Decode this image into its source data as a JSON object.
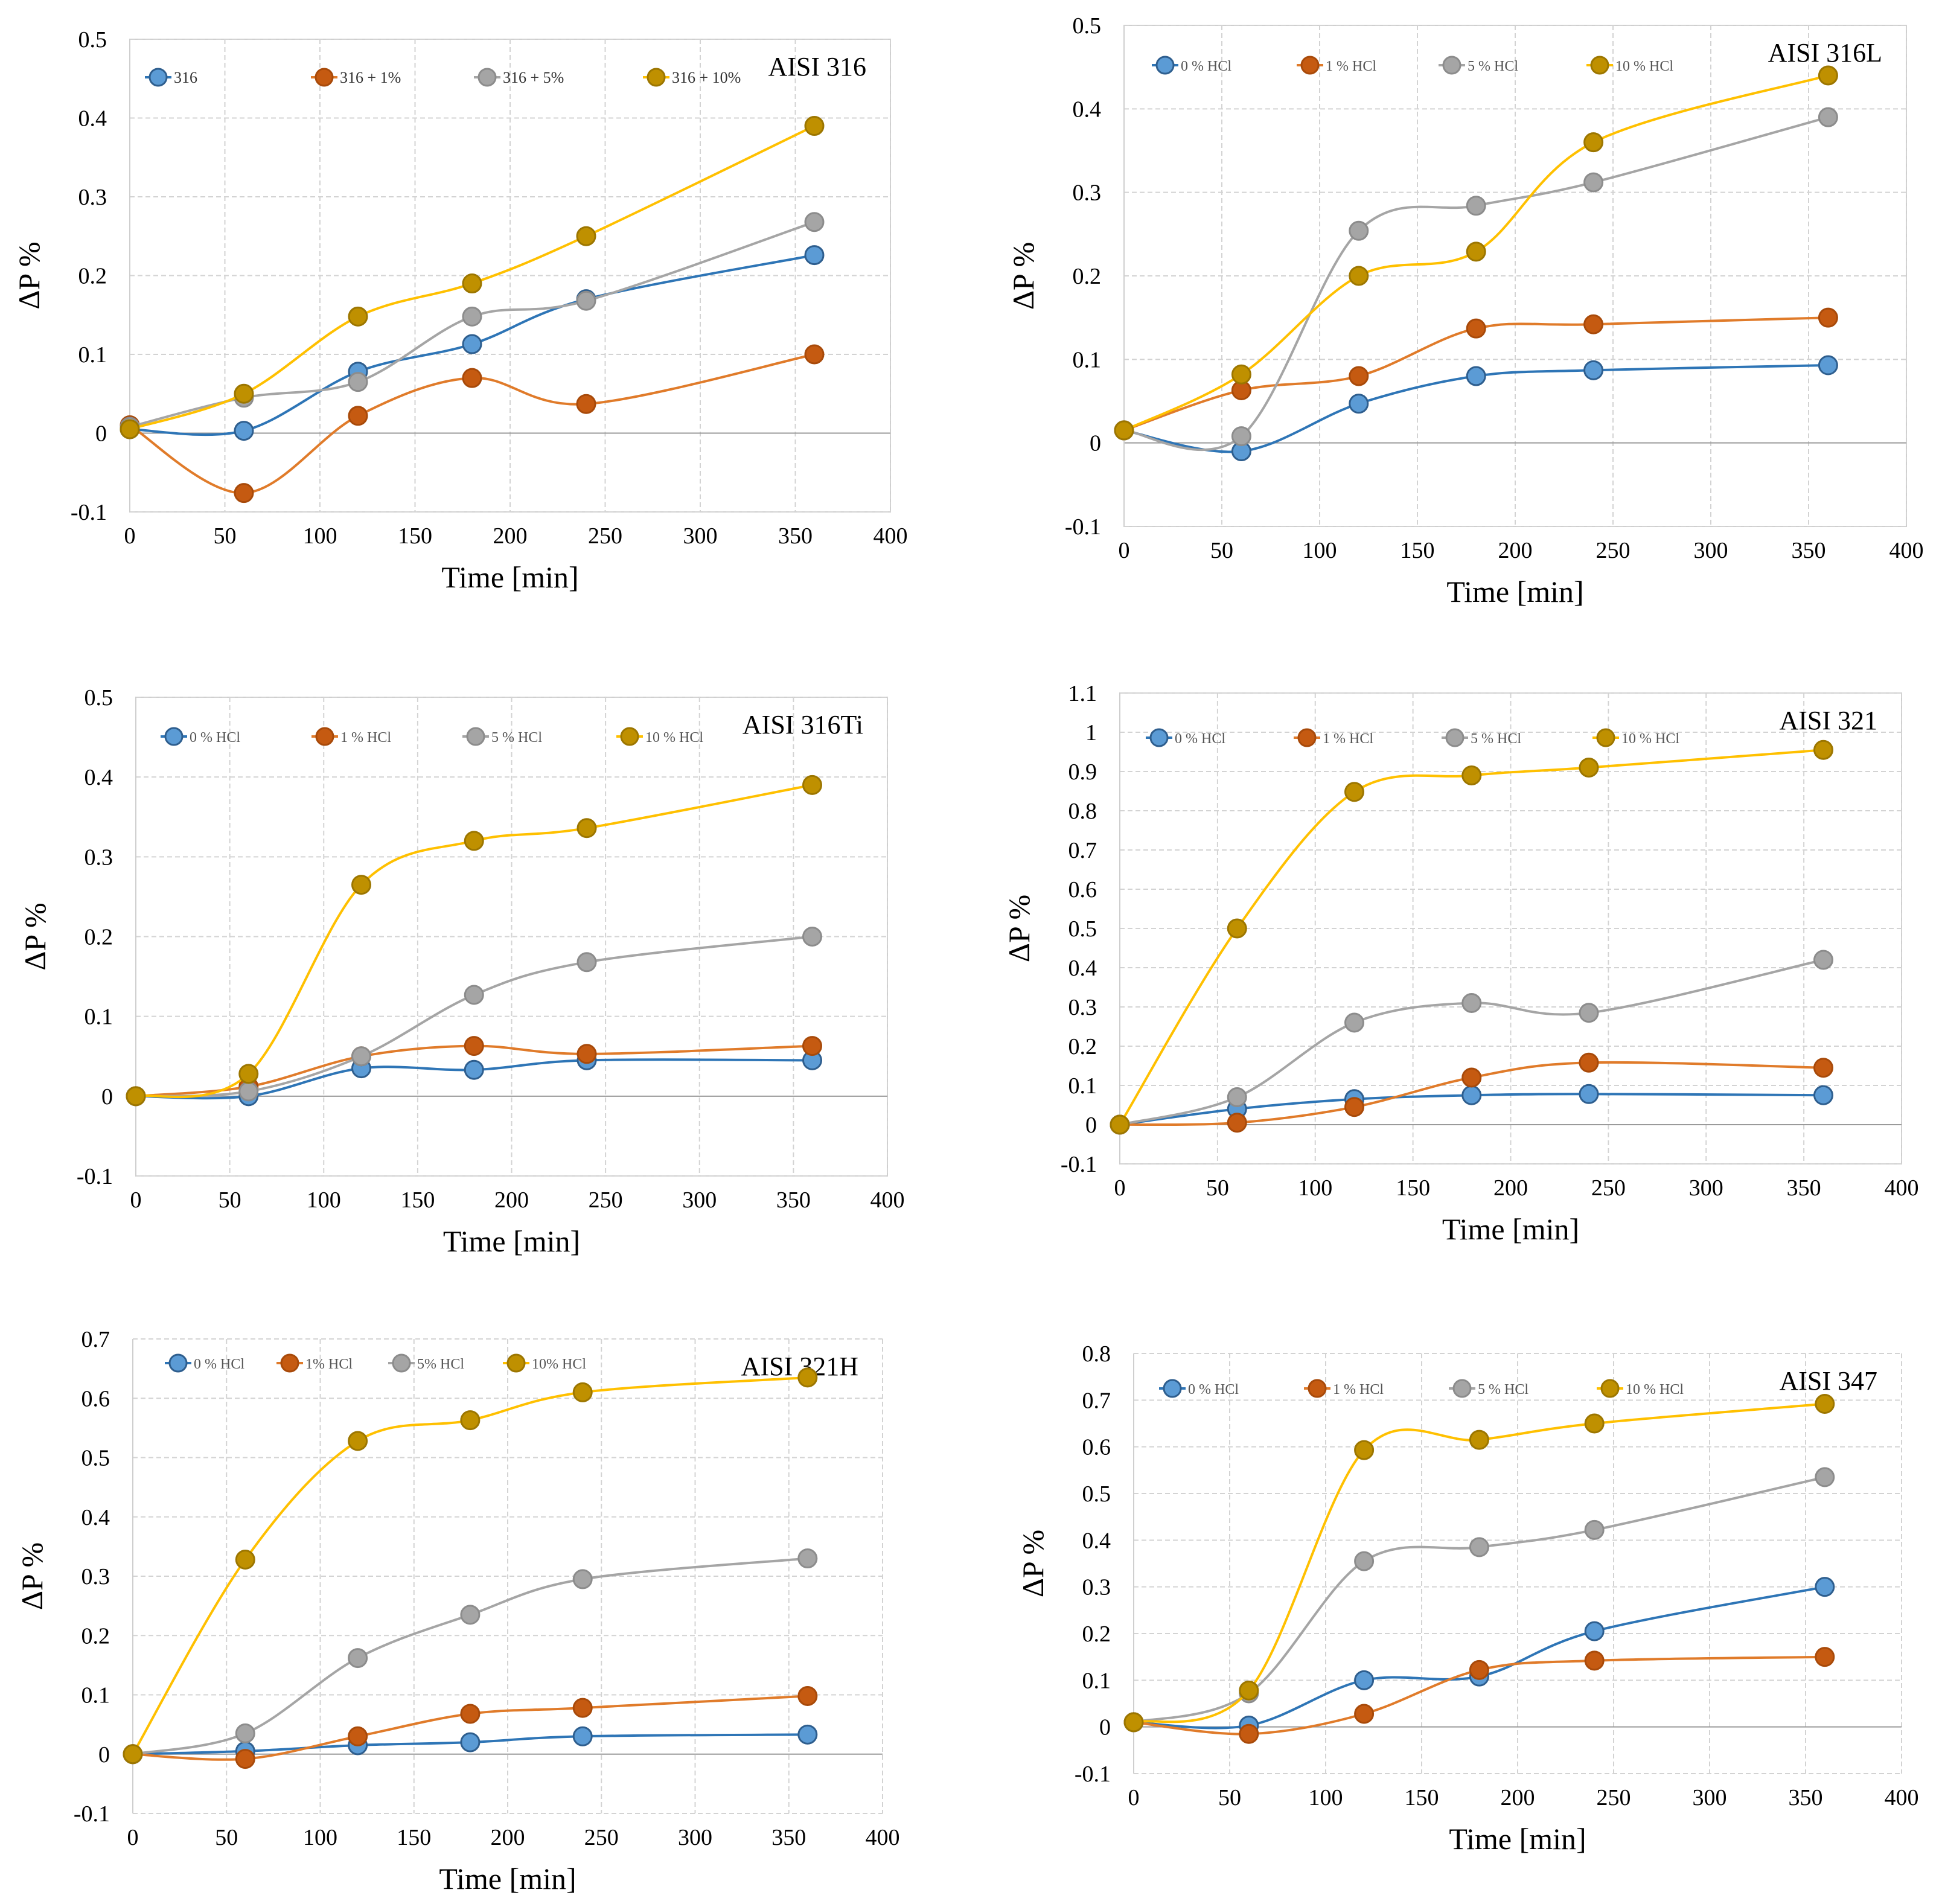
{
  "colors": {
    "blue_fill": "#5B9BD5",
    "blue_line": "#2E75B6",
    "blue_stroke": "#2E5E8E",
    "orange_fill": "#C55A11",
    "orange_line": "#E07B2A",
    "orange_stroke": "#A84A0A",
    "gray_fill": "#A5A5A5",
    "gray_line": "#A5A5A5",
    "gray_stroke": "#8C8C8C",
    "gold_fill": "#BF9000",
    "gold_line": "#FFC000",
    "gold_stroke": "#9C7600"
  },
  "chart_data": [
    {
      "type": "line",
      "title": "AISI 316",
      "xlabel": "Time [min]",
      "ylabel": "ΔP %",
      "xlim": [
        0,
        400
      ],
      "ylim": [
        -0.1,
        0.5
      ],
      "xticks": [
        0,
        50,
        100,
        150,
        200,
        250,
        300,
        350,
        400
      ],
      "yticks": [
        -0.1,
        0,
        0.1,
        0.2,
        0.3,
        0.4,
        0.5
      ],
      "x": [
        0,
        60,
        120,
        180,
        240,
        360
      ],
      "series": [
        {
          "name": "316",
          "color": "blue",
          "values": [
            0.005,
            0.003,
            0.078,
            0.113,
            0.17,
            0.226
          ]
        },
        {
          "name": "316 + 1%",
          "color": "orange",
          "values": [
            0.01,
            -0.076,
            0.022,
            0.07,
            0.037,
            0.1
          ]
        },
        {
          "name": "316 + 5%",
          "color": "gray",
          "values": [
            0.008,
            0.045,
            0.065,
            0.148,
            0.168,
            0.268
          ]
        },
        {
          "name": "316 + 10%",
          "color": "gold",
          "values": [
            0.005,
            0.05,
            0.148,
            0.19,
            0.25,
            0.39
          ]
        }
      ]
    },
    {
      "type": "line",
      "title": "AISI 316L",
      "xlabel": "Time [min]",
      "ylabel": "ΔP %",
      "xlim": [
        0,
        400
      ],
      "ylim": [
        -0.1,
        0.5
      ],
      "xticks": [
        0,
        50,
        100,
        150,
        200,
        250,
        300,
        350,
        400
      ],
      "yticks": [
        -0.1,
        0,
        0.1,
        0.2,
        0.3,
        0.4,
        0.5
      ],
      "x": [
        0,
        60,
        120,
        180,
        240,
        360
      ],
      "series": [
        {
          "name": "0 % HCl",
          "color": "blue",
          "values": [
            0.015,
            -0.01,
            0.047,
            0.08,
            0.087,
            0.093
          ]
        },
        {
          "name": "1 % HCl",
          "color": "orange",
          "values": [
            0.015,
            0.063,
            0.08,
            0.137,
            0.142,
            0.15
          ]
        },
        {
          "name": "5 % HCl",
          "color": "gray",
          "values": [
            0.015,
            0.008,
            0.254,
            0.284,
            0.312,
            0.39
          ]
        },
        {
          "name": "10 % HCl",
          "color": "gold",
          "values": [
            0.015,
            0.082,
            0.2,
            0.229,
            0.36,
            0.44
          ]
        }
      ]
    },
    {
      "type": "line",
      "title": "AISI 316Ti",
      "xlabel": "Time [min]",
      "ylabel": "ΔP %",
      "xlim": [
        0,
        400
      ],
      "ylim": [
        -0.1,
        0.5
      ],
      "xticks": [
        0,
        50,
        100,
        150,
        200,
        250,
        300,
        350,
        400
      ],
      "yticks": [
        -0.1,
        0,
        0.1,
        0.2,
        0.3,
        0.4,
        0.5
      ],
      "x": [
        0,
        60,
        120,
        180,
        240,
        360
      ],
      "series": [
        {
          "name": "0 % HCl",
          "color": "blue",
          "values": [
            0.0,
            0.0,
            0.035,
            0.033,
            0.045,
            0.045
          ]
        },
        {
          "name": "1 % HCl",
          "color": "orange",
          "values": [
            0.0,
            0.012,
            0.05,
            0.063,
            0.053,
            0.063
          ]
        },
        {
          "name": "5 % HCl",
          "color": "gray",
          "values": [
            0.0,
            0.006,
            0.05,
            0.127,
            0.168,
            0.2
          ]
        },
        {
          "name": "10 % HCl",
          "color": "gold",
          "values": [
            0.0,
            0.028,
            0.265,
            0.32,
            0.336,
            0.39
          ]
        }
      ]
    },
    {
      "type": "line",
      "title": "AISI 321",
      "xlabel": "Time [min]",
      "ylabel": "ΔP %",
      "xlim": [
        0,
        400
      ],
      "ylim": [
        -0.1,
        1.1
      ],
      "xticks": [
        0,
        50,
        100,
        150,
        200,
        250,
        300,
        350,
        400
      ],
      "yticks": [
        -0.1,
        0,
        0.1,
        0.2,
        0.3,
        0.4,
        0.5,
        0.6,
        0.7,
        0.8,
        0.9,
        1,
        1.1
      ],
      "x": [
        0,
        60,
        120,
        180,
        240,
        360
      ],
      "series": [
        {
          "name": "0 % HCl",
          "color": "blue",
          "values": [
            0.0,
            0.04,
            0.065,
            0.075,
            0.078,
            0.075
          ]
        },
        {
          "name": "1 % HCl",
          "color": "orange",
          "values": [
            0.0,
            0.005,
            0.045,
            0.12,
            0.158,
            0.145
          ]
        },
        {
          "name": "5 % HCl",
          "color": "gray",
          "values": [
            0.0,
            0.07,
            0.26,
            0.31,
            0.285,
            0.42
          ]
        },
        {
          "name": "10 % HCl",
          "color": "gold",
          "values": [
            0.0,
            0.5,
            0.848,
            0.89,
            0.91,
            0.955
          ]
        }
      ]
    },
    {
      "type": "line",
      "title": "AISI 321H",
      "xlabel": "Time [min]",
      "ylabel": "ΔP %",
      "xlim": [
        0,
        400
      ],
      "ylim": [
        -0.1,
        0.7
      ],
      "xticks": [
        0,
        50,
        100,
        150,
        200,
        250,
        300,
        350,
        400
      ],
      "yticks": [
        -0.1,
        0,
        0.1,
        0.2,
        0.3,
        0.4,
        0.5,
        0.6,
        0.7
      ],
      "x": [
        0,
        60,
        120,
        180,
        240,
        360
      ],
      "series": [
        {
          "name": "0 % HCl",
          "color": "blue",
          "values": [
            0.0,
            0.005,
            0.015,
            0.02,
            0.03,
            0.033
          ]
        },
        {
          "name": "1% HCl",
          "color": "orange",
          "values": [
            0.0,
            -0.008,
            0.03,
            0.068,
            0.078,
            0.098
          ]
        },
        {
          "name": "5% HCl",
          "color": "gray",
          "values": [
            0.0,
            0.035,
            0.162,
            0.235,
            0.295,
            0.33
          ]
        },
        {
          "name": "10% HCl",
          "color": "gold",
          "values": [
            0.0,
            0.328,
            0.528,
            0.563,
            0.61,
            0.635
          ]
        }
      ]
    },
    {
      "type": "line",
      "title": "AISI 347",
      "xlabel": "Time [min]",
      "ylabel": "ΔP %",
      "xlim": [
        0,
        400
      ],
      "ylim": [
        -0.1,
        0.8
      ],
      "xticks": [
        0,
        50,
        100,
        150,
        200,
        250,
        300,
        350,
        400
      ],
      "yticks": [
        -0.1,
        0,
        0.1,
        0.2,
        0.3,
        0.4,
        0.5,
        0.6,
        0.7,
        0.8
      ],
      "x": [
        0,
        60,
        120,
        180,
        240,
        360
      ],
      "series": [
        {
          "name": "0 % HCl",
          "color": "blue",
          "values": [
            0.01,
            0.003,
            0.1,
            0.108,
            0.205,
            0.3
          ]
        },
        {
          "name": "1 % HCl",
          "color": "orange",
          "values": [
            0.01,
            -0.015,
            0.028,
            0.122,
            0.142,
            0.15
          ]
        },
        {
          "name": "5 % HCl",
          "color": "gray",
          "values": [
            0.01,
            0.072,
            0.355,
            0.385,
            0.422,
            0.535
          ]
        },
        {
          "name": "10 % HCl",
          "color": "gold",
          "values": [
            0.01,
            0.078,
            0.593,
            0.615,
            0.65,
            0.692
          ]
        }
      ]
    }
  ]
}
